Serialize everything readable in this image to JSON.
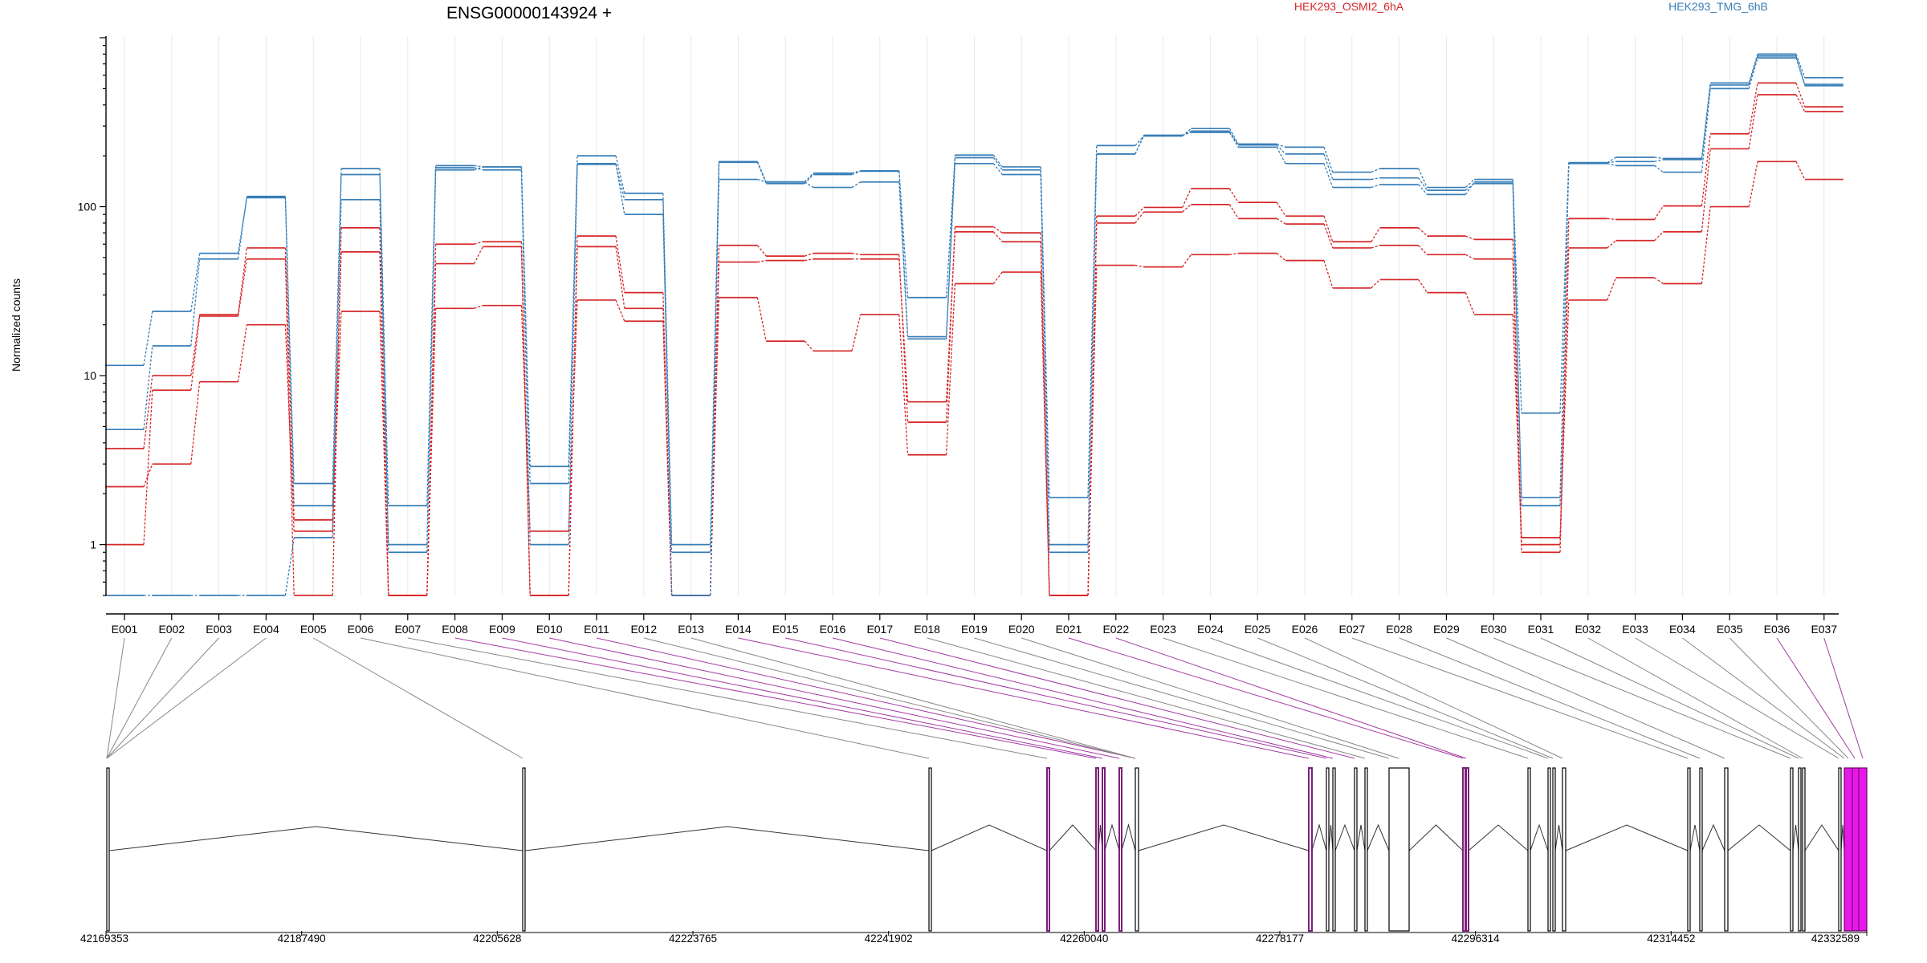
{
  "title": "ENSG00000143924 +",
  "legend": [
    {
      "label": "HEK293_OSMI2_6hA",
      "color": "#d62728"
    },
    {
      "label": "HEK293_TMG_6hB",
      "color": "#377eb8"
    }
  ],
  "colors": {
    "treated": "#d62728",
    "control": "#377eb8",
    "highlight": "#e818e8",
    "highlight_link": "#a33aa3",
    "link": "#888888",
    "axis": "#000000"
  },
  "chart_data": {
    "type": "line",
    "title": "ENSG00000143924 +",
    "ylabel": "Normalized counts",
    "yscale": "log",
    "ylim": [
      0.5,
      1000
    ],
    "yticks": [
      1,
      10,
      100
    ],
    "ytick_labels": [
      "1",
      "10",
      "100"
    ],
    "categories": [
      "E001",
      "E002",
      "E003",
      "E004",
      "E005",
      "E006",
      "E007",
      "E008",
      "E009",
      "E010",
      "E011",
      "E012",
      "E013",
      "E014",
      "E015",
      "E016",
      "E017",
      "E018",
      "E019",
      "E020",
      "E021",
      "E022",
      "E023",
      "E024",
      "E025",
      "E026",
      "E027",
      "E028",
      "E029",
      "E030",
      "E031",
      "E032",
      "E033",
      "E034",
      "E035",
      "E036",
      "E037"
    ],
    "series": [
      {
        "group": "HEK293_OSMI2_6hA",
        "values": [
          2.2,
          3.0,
          9.2,
          20,
          1.2,
          24,
          0.5,
          25,
          26,
          1.2,
          28,
          21,
          0.5,
          29,
          16,
          14,
          23,
          3.4,
          35,
          41,
          0.5,
          45,
          44,
          52,
          53,
          48,
          33,
          37,
          31,
          23,
          1.1,
          28,
          38,
          35,
          100,
          185,
          145
        ]
      },
      {
        "group": "HEK293_OSMI2_6hA",
        "values": [
          3.7,
          10,
          23,
          57,
          1.4,
          54,
          0.5,
          60,
          62,
          0.5,
          67,
          31,
          0.5,
          59,
          51,
          53,
          52,
          5.3,
          76,
          70,
          0.5,
          88,
          99,
          128,
          106,
          88,
          62,
          75,
          67,
          64,
          1.0,
          85,
          84,
          101,
          270,
          540,
          390
        ]
      },
      {
        "group": "HEK293_OSMI2_6hA",
        "values": [
          1.0,
          8.2,
          22.5,
          49,
          0.5,
          75,
          0.5,
          46,
          58,
          0.5,
          58,
          25,
          0.5,
          47,
          48,
          49,
          49,
          7.0,
          71,
          62,
          0.5,
          80,
          93,
          103,
          85,
          79,
          57,
          59,
          52,
          49,
          0.9,
          57,
          63,
          71,
          220,
          460,
          365
        ]
      },
      {
        "group": "HEK293_TMG_6hB",
        "values": [
          4.8,
          15,
          49,
          115,
          1.7,
          110,
          1.0,
          170,
          165,
          1.0,
          180,
          90,
          0.9,
          145,
          140,
          130,
          140,
          16.5,
          180,
          155,
          0.9,
          205,
          265,
          275,
          225,
          180,
          130,
          135,
          118,
          140,
          1.7,
          180,
          175,
          160,
          500,
          760,
          520
        ]
      },
      {
        "group": "HEK293_TMG_6hB",
        "values": [
          11.5,
          24,
          53,
          113,
          2.3,
          168,
          1.7,
          175,
          172,
          2.3,
          200,
          120,
          1.0,
          185,
          140,
          158,
          163,
          17,
          202,
          172,
          1.9,
          230,
          262,
          290,
          235,
          225,
          160,
          168,
          130,
          145,
          6.0,
          182,
          196,
          193,
          540,
          800,
          580
        ]
      },
      {
        "group": "HEK293_TMG_6hB",
        "values": [
          0.5,
          0.5,
          0.5,
          0.5,
          1.1,
          155,
          0.9,
          165,
          172,
          2.9,
          178,
          110,
          0.5,
          183,
          137,
          155,
          162,
          29,
          195,
          165,
          1.0,
          205,
          263,
          280,
          232,
          205,
          145,
          148,
          125,
          137,
          1.9,
          182,
          185,
          190,
          525,
          780,
          530
        ]
      }
    ],
    "genomic_axis": {
      "ticks": [
        42169353,
        42187490,
        42205628,
        42223765,
        42241902,
        42260040,
        42278177,
        42296314,
        42314452,
        42332589
      ],
      "tick_labels": [
        "42169353",
        "42187490",
        "42205628",
        "42223765",
        "42241902",
        "42260040",
        "42278177",
        "42296314",
        "42314452",
        "42332589"
      ],
      "range": [
        42169353,
        42332589
      ]
    }
  }
}
